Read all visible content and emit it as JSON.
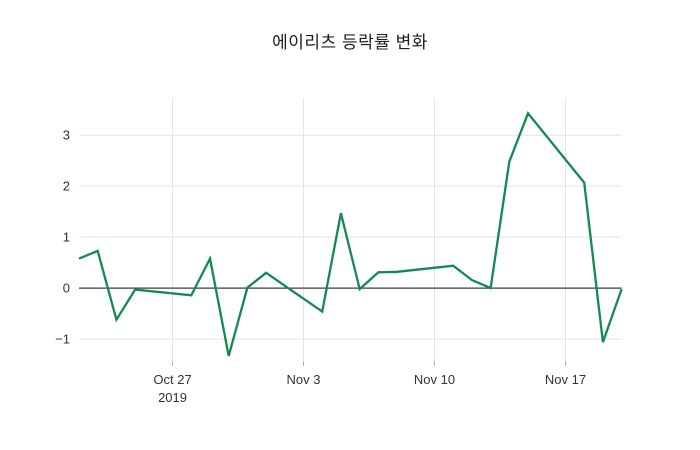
{
  "title": "에이리츠 등락률 변화",
  "colors": {
    "background": "#ffffff",
    "line": "#148a51",
    "grid": "#e3e3e3",
    "zeroline": "#3d3d3d",
    "tick_mark": "#b0b0b0",
    "tick_text": "#333333",
    "title_text": "#1c1c1c"
  },
  "chart_data": {
    "type": "line",
    "title": "에이리츠 등락률 변화",
    "series_name": "등락률",
    "xlabel": "",
    "ylabel": "",
    "grid": true,
    "zeroline": true,
    "legend": "none",
    "x_range": [
      "2019-10-22",
      "2019-11-20"
    ],
    "y_range": [
      -1.43,
      3.73
    ],
    "x": [
      "2019-10-22",
      "2019-10-23",
      "2019-10-24",
      "2019-10-25",
      "2019-10-28",
      "2019-10-29",
      "2019-10-30",
      "2019-10-31",
      "2019-11-01",
      "2019-11-04",
      "2019-11-05",
      "2019-11-06",
      "2019-11-07",
      "2019-11-08",
      "2019-11-11",
      "2019-11-12",
      "2019-11-13",
      "2019-11-14",
      "2019-11-15",
      "2019-11-18",
      "2019-11-19",
      "2019-11-20"
    ],
    "values": [
      0.58,
      0.73,
      -0.62,
      -0.03,
      -0.14,
      0.58,
      -1.33,
      0.01,
      0.3,
      -0.46,
      1.47,
      -0.02,
      0.31,
      0.32,
      0.44,
      0.16,
      0.0,
      2.48,
      3.43,
      2.07,
      -1.06,
      -0.02
    ],
    "y_ticks": [
      {
        "label": "3",
        "value": 3
      },
      {
        "label": "2",
        "value": 2
      },
      {
        "label": "1",
        "value": 1
      },
      {
        "label": "0",
        "value": 0
      },
      {
        "label": "−1",
        "value": -1
      }
    ],
    "x_ticks": [
      {
        "label": "Oct 27",
        "year": "2019",
        "date": "2019-10-27"
      },
      {
        "label": "Nov 3",
        "year": "",
        "date": "2019-11-03"
      },
      {
        "label": "Nov 10",
        "year": "",
        "date": "2019-11-10"
      },
      {
        "label": "Nov 17",
        "year": "",
        "date": "2019-11-17"
      }
    ]
  }
}
